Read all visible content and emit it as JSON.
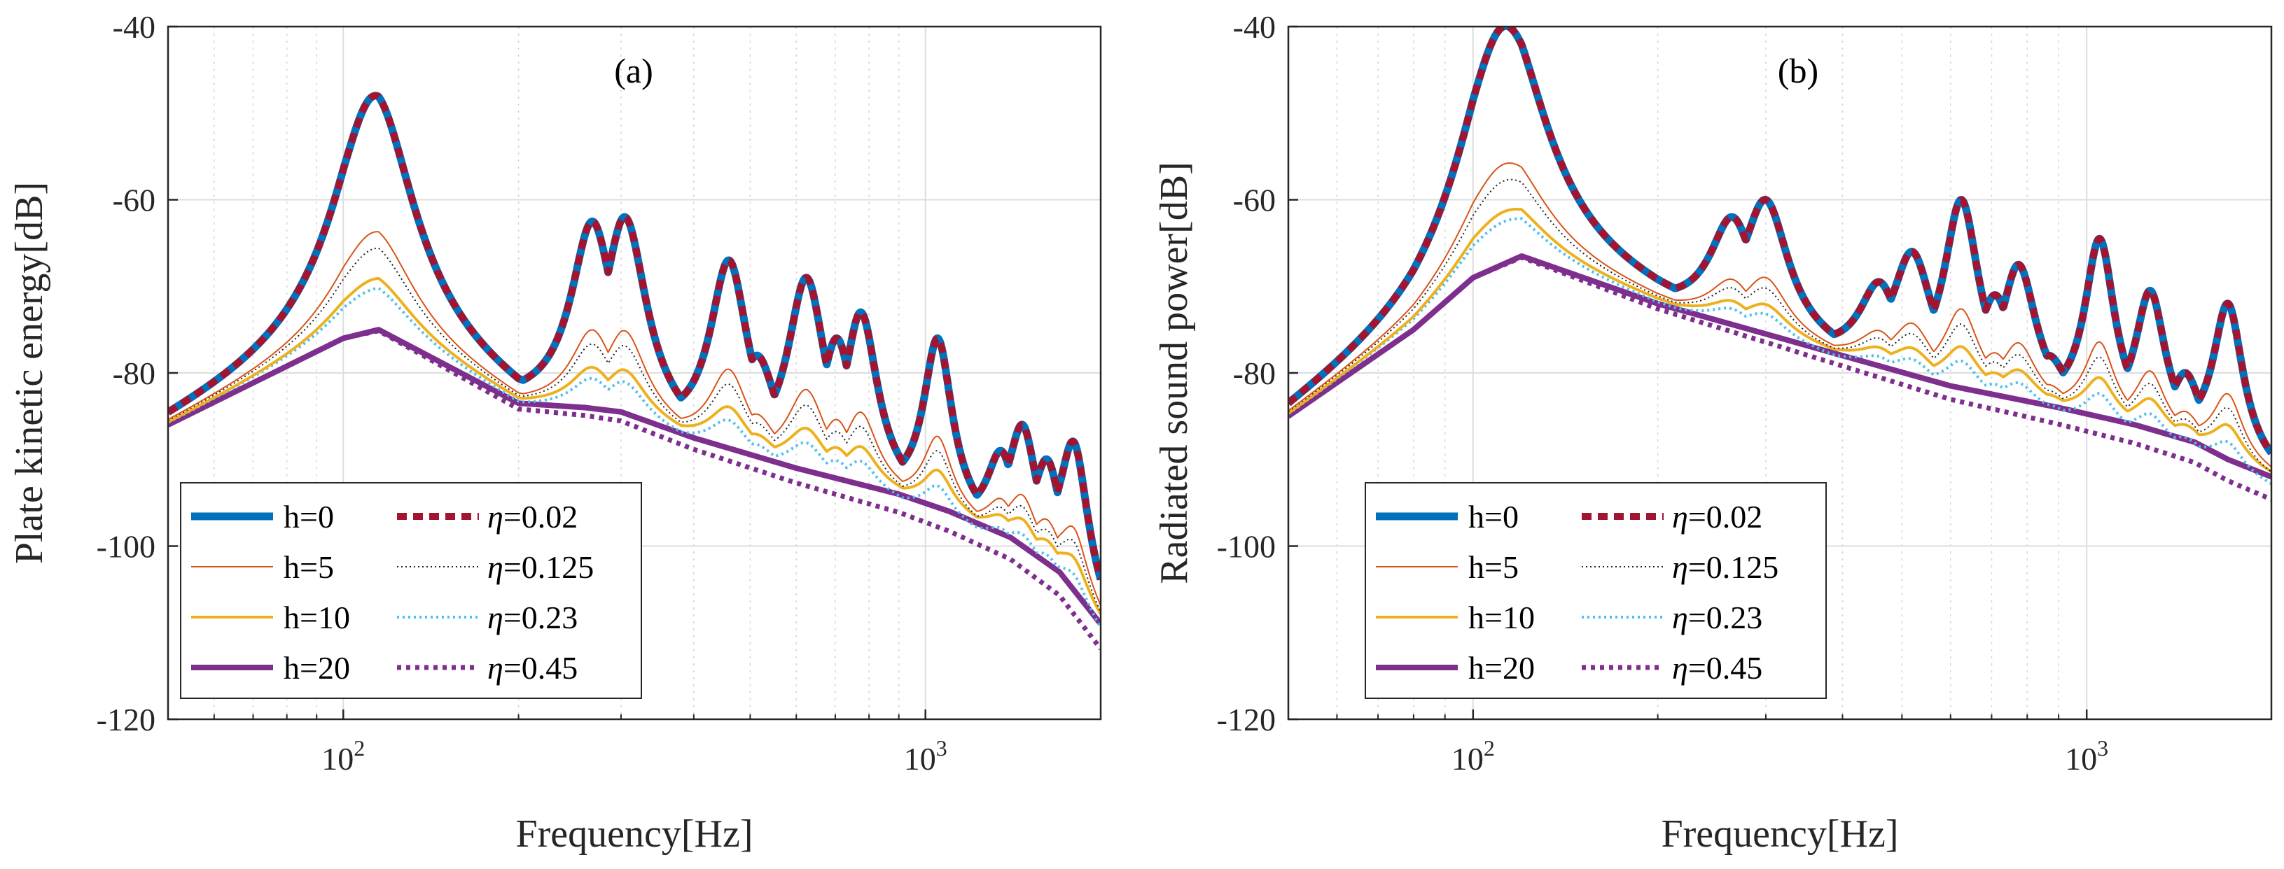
{
  "chart_data": [
    {
      "type": "line",
      "panel": "(a)",
      "xlabel": "Frequency[Hz]",
      "ylabel": "Plate kinetic energy[dB]",
      "xscale": "log",
      "xlim": [
        50,
        2000
      ],
      "ylim": [
        -120,
        -40
      ],
      "yticks": [
        -120,
        -100,
        -80,
        -60,
        -40
      ],
      "xticks": [
        {
          "value": 100,
          "base": "10",
          "exp": "2"
        },
        {
          "value": 1000,
          "base": "10",
          "exp": "3"
        }
      ],
      "grid": true,
      "legend_placement": "bottom-left",
      "baseline": [
        [
          50,
          -86
        ],
        [
          100,
          -76
        ],
        [
          115,
          -75
        ],
        [
          200,
          -83.5
        ],
        [
          260,
          -84
        ],
        [
          300,
          -84.5
        ],
        [
          400,
          -87.5
        ],
        [
          600,
          -91
        ],
        [
          900,
          -94
        ],
        [
          1100,
          -96
        ],
        [
          1400,
          -99
        ],
        [
          1700,
          -103
        ],
        [
          2000,
          -109
        ]
      ],
      "resonances": [
        {
          "f": 113,
          "peak": -48,
          "width": 0.085
        },
        {
          "f": 268,
          "peak": -62.5,
          "width": 0.045
        },
        {
          "f": 305,
          "peak": -62,
          "width": 0.045
        },
        {
          "f": 460,
          "peak": -67,
          "width": 0.04
        },
        {
          "f": 515,
          "peak": -78,
          "width": 0.04
        },
        {
          "f": 625,
          "peak": -69,
          "width": 0.04
        },
        {
          "f": 705,
          "peak": -76,
          "width": 0.035
        },
        {
          "f": 775,
          "peak": -73,
          "width": 0.035
        },
        {
          "f": 1050,
          "peak": -76,
          "width": 0.03
        },
        {
          "f": 1350,
          "peak": -89,
          "width": 0.03
        },
        {
          "f": 1470,
          "peak": -86,
          "width": 0.03
        },
        {
          "f": 1620,
          "peak": -90,
          "width": 0.03
        },
        {
          "f": 1800,
          "peak": -88,
          "width": 0.03
        }
      ],
      "series": [
        {
          "name": "h=0",
          "color": "#0072BD",
          "style": "solid",
          "factor": 1.0,
          "offset": 0
        },
        {
          "name": "h=5",
          "color": "#D95319",
          "style": "solid",
          "factor": 0.42,
          "offset": 0
        },
        {
          "name": "h=10",
          "color": "#EDB120",
          "style": "solid",
          "factor": 0.22,
          "offset": 0
        },
        {
          "name": "h=20",
          "color": "#7E2F8E",
          "style": "solid",
          "factor": 0.0,
          "offset": 0
        },
        {
          "name": "η=0.02",
          "color": "#A2142F",
          "style": "dashed",
          "factor": 1.0,
          "offset": 0
        },
        {
          "name": "η=0.125",
          "color": "#202020",
          "style": "dotted",
          "factor": 0.35,
          "offset": 0.3
        },
        {
          "name": "η=0.23",
          "color": "#4DBEEE",
          "style": "dotted",
          "factor": 0.18,
          "offset": 1.0
        },
        {
          "name": "η=0.45",
          "color": "#7E2F8E",
          "style": "dotted",
          "factor": 0.0,
          "offset": 2.2
        }
      ]
    },
    {
      "type": "line",
      "panel": "(b)",
      "xlabel": "Frequency[Hz]",
      "ylabel": "Radiated sound power[dB]",
      "xscale": "log",
      "xlim": [
        50,
        2000
      ],
      "ylim": [
        -120,
        -40
      ],
      "yticks": [
        -120,
        -100,
        -80,
        -60,
        -40
      ],
      "xticks": [
        {
          "value": 100,
          "base": "10",
          "exp": "2"
        },
        {
          "value": 1000,
          "base": "10",
          "exp": "3"
        }
      ],
      "grid": true,
      "legend_placement": "bottom-left",
      "baseline": [
        [
          50,
          -85
        ],
        [
          80,
          -75
        ],
        [
          100,
          -69
        ],
        [
          120,
          -66.5
        ],
        [
          200,
          -72
        ],
        [
          300,
          -75.5
        ],
        [
          400,
          -78
        ],
        [
          600,
          -81.5
        ],
        [
          900,
          -84
        ],
        [
          1200,
          -86
        ],
        [
          1500,
          -88
        ],
        [
          1700,
          -90
        ],
        [
          2000,
          -92
        ]
      ],
      "resonances": [
        {
          "f": 112,
          "peak": -40,
          "width": 0.085
        },
        {
          "f": 265,
          "peak": -62,
          "width": 0.045
        },
        {
          "f": 300,
          "peak": -60,
          "width": 0.045
        },
        {
          "f": 460,
          "peak": -69.5,
          "width": 0.04
        },
        {
          "f": 520,
          "peak": -66,
          "width": 0.04
        },
        {
          "f": 625,
          "peak": -60,
          "width": 0.035
        },
        {
          "f": 710,
          "peak": -71,
          "width": 0.035
        },
        {
          "f": 775,
          "peak": -67.5,
          "width": 0.035
        },
        {
          "f": 870,
          "peak": -78,
          "width": 0.035
        },
        {
          "f": 1050,
          "peak": -64.5,
          "width": 0.03
        },
        {
          "f": 1270,
          "peak": -70.5,
          "width": 0.03
        },
        {
          "f": 1450,
          "peak": -80,
          "width": 0.03
        },
        {
          "f": 1700,
          "peak": -72,
          "width": 0.03
        }
      ],
      "series": [
        {
          "name": "h=0",
          "color": "#0072BD",
          "style": "solid",
          "factor": 1.0,
          "offset": 0
        },
        {
          "name": "h=5",
          "color": "#D95319",
          "style": "solid",
          "factor": 0.42,
          "offset": 0
        },
        {
          "name": "h=10",
          "color": "#EDB120",
          "style": "solid",
          "factor": 0.22,
          "offset": 0
        },
        {
          "name": "h=20",
          "color": "#7E2F8E",
          "style": "solid",
          "factor": 0.0,
          "offset": 0
        },
        {
          "name": "η=0.02",
          "color": "#A2142F",
          "style": "dashed",
          "factor": 1.0,
          "offset": 0
        },
        {
          "name": "η=0.125",
          "color": "#202020",
          "style": "dotted",
          "factor": 0.35,
          "offset": 0.3
        },
        {
          "name": "η=0.23",
          "color": "#4DBEEE",
          "style": "dotted",
          "factor": 0.18,
          "offset": 1.0
        },
        {
          "name": "η=0.45",
          "color": "#7E2F8E",
          "style": "dotted",
          "factor": 0.0,
          "offset": 2.0
        }
      ]
    }
  ],
  "legend": {
    "left": [
      "h=0",
      "h=5",
      "h=10",
      "h=20"
    ],
    "right": [
      {
        "sym": "η",
        "val": "=0.02"
      },
      {
        "sym": "η",
        "val": "=0.125"
      },
      {
        "sym": "η",
        "val": "=0.23"
      },
      {
        "sym": "η",
        "val": "=0.45"
      }
    ]
  }
}
